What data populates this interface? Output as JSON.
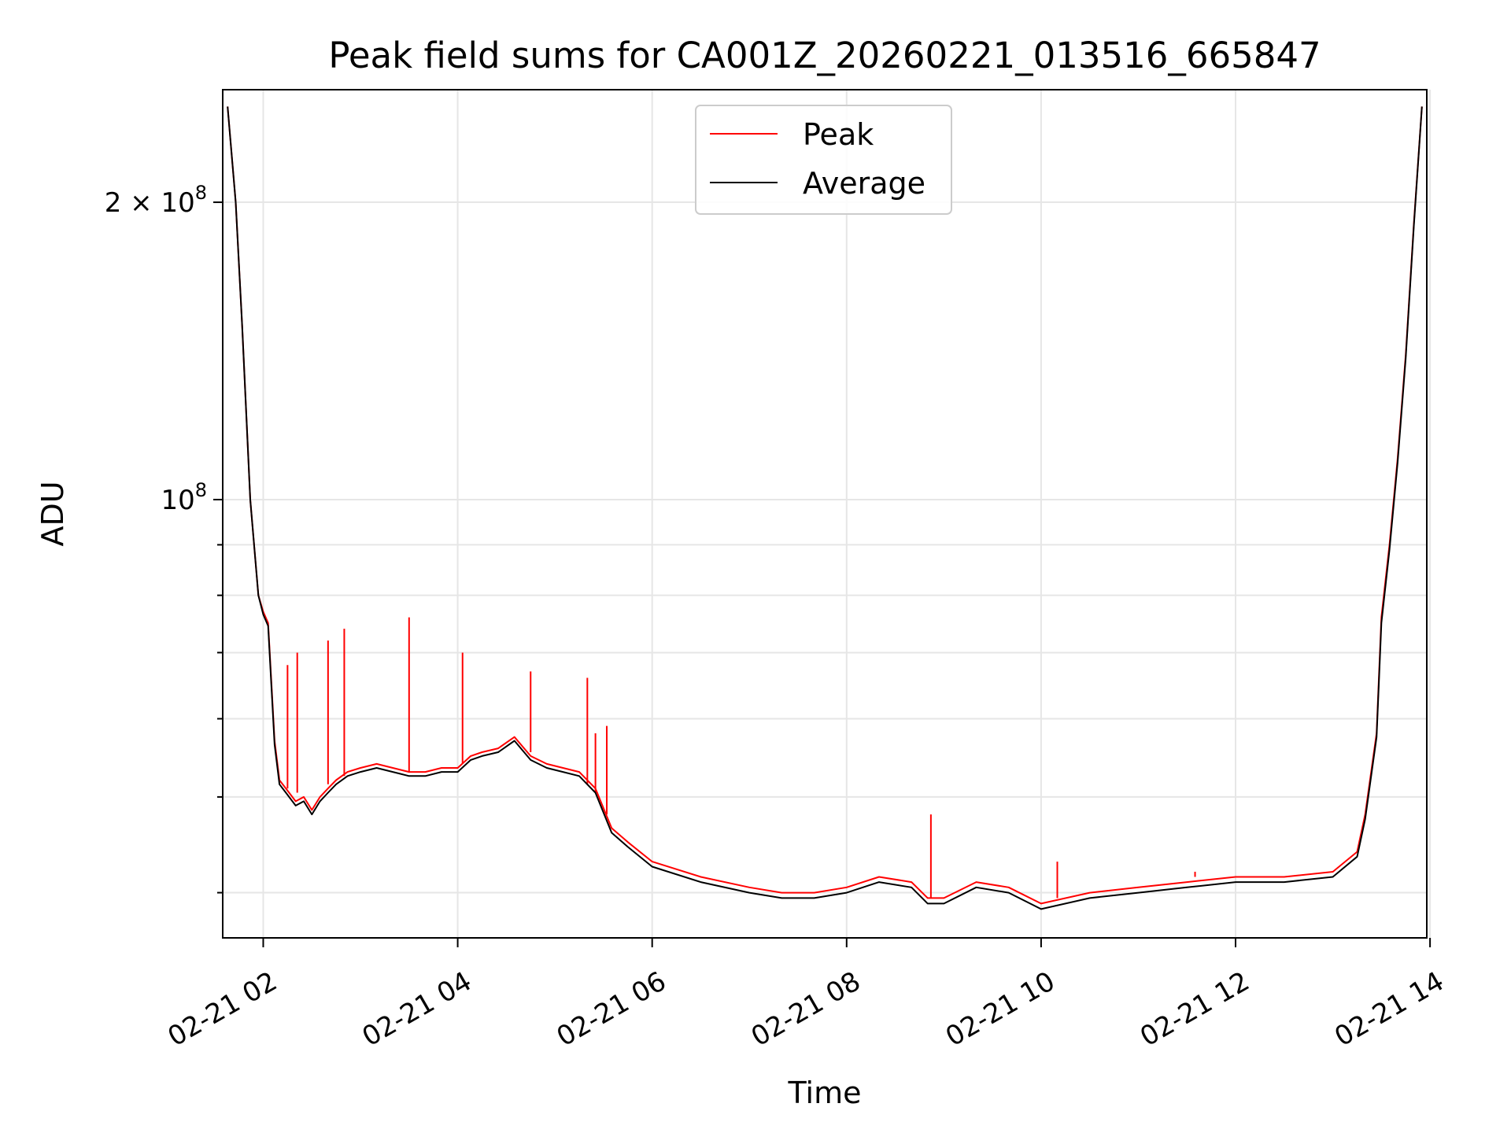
{
  "chart_data": {
    "type": "line",
    "title": "Peak field sums for CA001Z_20260221_013516_665847",
    "xlabel": "Time",
    "ylabel": "ADU",
    "y_scale": "log",
    "x_unit": "hours on 2026-02-21",
    "xlim": [
      "02-21 01:35",
      "02-21 13:58"
    ],
    "ylim": [
      36000000,
      260000000
    ],
    "grid": true,
    "legend_position": "top-center",
    "x_ticks": [
      {
        "value": "02-21 02:00",
        "label": "02-21 02"
      },
      {
        "value": "02-21 04:00",
        "label": "02-21 04"
      },
      {
        "value": "02-21 06:00",
        "label": "02-21 06"
      },
      {
        "value": "02-21 08:00",
        "label": "02-21 08"
      },
      {
        "value": "02-21 10:00",
        "label": "02-21 10"
      },
      {
        "value": "02-21 12:00",
        "label": "02-21 12"
      },
      {
        "value": "02-21 14:00",
        "label": "02-21 14"
      }
    ],
    "y_major_ticks": [
      {
        "value": 100000000,
        "base": "10",
        "exp": "8",
        "mantissa": ""
      },
      {
        "value": 200000000,
        "base": "10",
        "exp": "8",
        "mantissa": "2 × "
      }
    ],
    "y_minor_ticks": [
      40000000,
      50000000,
      60000000,
      70000000,
      80000000,
      90000000
    ],
    "series": [
      {
        "name": "Peak",
        "color": "#ff0000",
        "x": [
          "01:38",
          "01:43",
          "01:47",
          "01:52",
          "01:57",
          "02:00",
          "02:03",
          "02:07",
          "02:10",
          "02:14",
          "02:20",
          "02:25",
          "02:30",
          "02:35",
          "02:40",
          "02:45",
          "02:52",
          "03:00",
          "03:10",
          "03:20",
          "03:30",
          "03:40",
          "03:50",
          "04:00",
          "04:08",
          "04:15",
          "04:25",
          "04:35",
          "04:45",
          "04:55",
          "05:05",
          "05:15",
          "05:25",
          "05:35",
          "05:45",
          "06:00",
          "06:30",
          "07:00",
          "07:20",
          "07:40",
          "08:00",
          "08:20",
          "08:40",
          "08:50",
          "09:00",
          "09:20",
          "09:40",
          "10:00",
          "10:30",
          "11:00",
          "11:30",
          "12:00",
          "12:30",
          "13:00",
          "13:15",
          "13:20",
          "13:27",
          "13:30",
          "13:35",
          "13:40",
          "13:45",
          "13:50",
          "13:55"
        ],
        "y": [
          250000000,
          200000000,
          150000000,
          100000000,
          80000000,
          77000000,
          75000000,
          57000000,
          52000000,
          51000000,
          49500000,
          50000000,
          48500000,
          50000000,
          51000000,
          52000000,
          53000000,
          53500000,
          54000000,
          53500000,
          53000000,
          53000000,
          53500000,
          53500000,
          55000000,
          55500000,
          56000000,
          57500000,
          55000000,
          54000000,
          53500000,
          53000000,
          51000000,
          46500000,
          45000000,
          43000000,
          41500000,
          40500000,
          40000000,
          40000000,
          40500000,
          41500000,
          41000000,
          39500000,
          39500000,
          41000000,
          40500000,
          39000000,
          40000000,
          40500000,
          41000000,
          41500000,
          41500000,
          42000000,
          44000000,
          48000000,
          58000000,
          76000000,
          90000000,
          110000000,
          140000000,
          190000000,
          250000000
        ]
      },
      {
        "name": "Average",
        "color": "#000000",
        "x": [
          "01:38",
          "01:43",
          "01:47",
          "01:52",
          "01:57",
          "02:00",
          "02:03",
          "02:07",
          "02:10",
          "02:14",
          "02:20",
          "02:25",
          "02:30",
          "02:35",
          "02:40",
          "02:45",
          "02:52",
          "03:00",
          "03:10",
          "03:20",
          "03:30",
          "03:40",
          "03:50",
          "04:00",
          "04:08",
          "04:15",
          "04:25",
          "04:35",
          "04:45",
          "04:55",
          "05:05",
          "05:15",
          "05:25",
          "05:35",
          "05:45",
          "06:00",
          "06:30",
          "07:00",
          "07:20",
          "07:40",
          "08:00",
          "08:20",
          "08:40",
          "08:50",
          "09:00",
          "09:20",
          "09:40",
          "10:00",
          "10:30",
          "11:00",
          "11:30",
          "12:00",
          "12:30",
          "13:00",
          "13:15",
          "13:20",
          "13:27",
          "13:30",
          "13:35",
          "13:40",
          "13:45",
          "13:50",
          "13:55"
        ],
        "y": [
          250000000,
          200000000,
          150000000,
          100000000,
          80000000,
          76500000,
          74500000,
          56500000,
          51500000,
          50500000,
          49000000,
          49500000,
          48000000,
          49500000,
          50500000,
          51500000,
          52500000,
          53000000,
          53500000,
          53000000,
          52500000,
          52500000,
          53000000,
          53000000,
          54500000,
          55000000,
          55500000,
          57000000,
          54500000,
          53500000,
          53000000,
          52500000,
          50500000,
          46000000,
          44500000,
          42500000,
          41000000,
          40000000,
          39500000,
          39500000,
          40000000,
          41000000,
          40500000,
          39000000,
          39000000,
          40500000,
          40000000,
          38500000,
          39500000,
          40000000,
          40500000,
          41000000,
          41000000,
          41500000,
          43500000,
          47500000,
          57500000,
          75000000,
          89000000,
          109000000,
          139000000,
          189000000,
          250000000
        ]
      }
    ],
    "spikes": {
      "color": "#ff0000",
      "x": [
        "02:15",
        "02:21",
        "02:40",
        "02:50",
        "03:30",
        "04:03",
        "04:45",
        "05:20",
        "05:25",
        "05:32",
        "08:52",
        "10:10",
        "11:35"
      ],
      "base": [
        51000000,
        50500000,
        51500000,
        52500000,
        53000000,
        54000000,
        55500000,
        51500000,
        50500000,
        48000000,
        39500000,
        39500000,
        41500000
      ],
      "y": [
        68000000,
        70000000,
        72000000,
        74000000,
        76000000,
        70000000,
        67000000,
        66000000,
        58000000,
        59000000,
        48000000,
        43000000,
        42000000
      ]
    }
  }
}
